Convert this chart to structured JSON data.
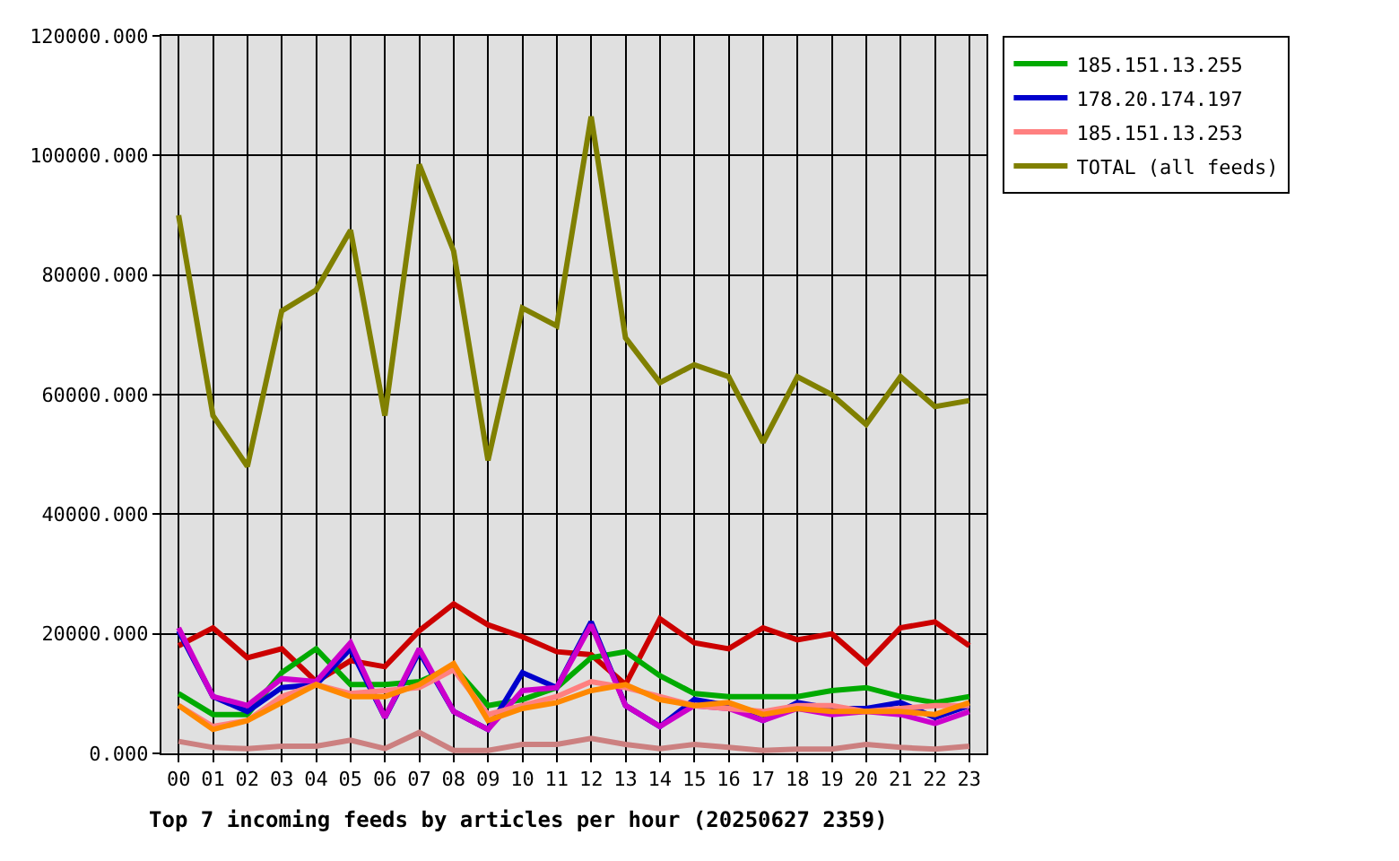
{
  "chart_data": {
    "type": "line",
    "title": "Top 7 incoming feeds by articles per hour (20250627 2359)",
    "categories": [
      "00",
      "01",
      "02",
      "03",
      "04",
      "05",
      "06",
      "07",
      "08",
      "09",
      "10",
      "11",
      "12",
      "13",
      "14",
      "15",
      "16",
      "17",
      "18",
      "19",
      "20",
      "21",
      "22",
      "23"
    ],
    "series": [
      {
        "color": "#cc0000",
        "values": [
          18000,
          21000,
          16000,
          17500,
          12000,
          15500,
          14500,
          20500,
          25000,
          21500,
          19500,
          17000,
          16500,
          11500,
          22500,
          18500,
          17500,
          21000,
          19000,
          20000,
          15000,
          21000,
          22000,
          18000
        ]
      },
      {
        "name": "185.151.13.255",
        "color": "#00aa00",
        "values": [
          10000,
          6500,
          6500,
          13500,
          17500,
          11500,
          11500,
          12000,
          14500,
          8000,
          9000,
          11000,
          16000,
          17000,
          13000,
          10000,
          9500,
          9500,
          9500,
          10500,
          11000,
          9500,
          8500,
          9500
        ]
      },
      {
        "name": "178.20.174.197",
        "color": "#0000cc",
        "values": [
          20500,
          9500,
          7000,
          11000,
          11500,
          17500,
          6000,
          17000,
          7000,
          4000,
          13500,
          11000,
          22000,
          8000,
          4500,
          9000,
          8000,
          5500,
          8500,
          7500,
          7500,
          8500,
          6000,
          8000
        ]
      },
      {
        "color": "#cc00cc",
        "values": [
          21000,
          9500,
          8000,
          12500,
          12000,
          18500,
          6000,
          17500,
          7000,
          4000,
          10500,
          11000,
          21500,
          8000,
          4500,
          8000,
          7500,
          5500,
          7500,
          6500,
          7000,
          6500,
          5000,
          7000
        ]
      },
      {
        "name": "185.151.13.253",
        "color": "#ff8080",
        "values": [
          8000,
          4500,
          5500,
          9500,
          11500,
          10000,
          10500,
          11000,
          14000,
          6500,
          8000,
          9500,
          12000,
          11000,
          9500,
          8000,
          7500,
          7000,
          8000,
          8000,
          7000,
          7500,
          8000,
          8000
        ]
      },
      {
        "color": "#ff8800",
        "values": [
          8000,
          4000,
          5500,
          8500,
          11500,
          9500,
          9500,
          11500,
          15000,
          5500,
          7500,
          8500,
          10500,
          11500,
          9000,
          8000,
          8500,
          6500,
          7500,
          7000,
          7000,
          7000,
          6500,
          8500
        ]
      },
      {
        "color": "#cc8080",
        "values": [
          2000,
          1000,
          800,
          1200,
          1200,
          2200,
          800,
          3500,
          500,
          500,
          1500,
          1500,
          2500,
          1500,
          800,
          1500,
          1000,
          500,
          700,
          700,
          1500,
          1000,
          700,
          1200
        ]
      },
      {
        "name": "TOTAL (all feeds)",
        "color": "#808000",
        "values": [
          90000,
          56500,
          48000,
          74000,
          77500,
          87500,
          56500,
          98500,
          84000,
          49000,
          74500,
          71500,
          106500,
          69500,
          62000,
          65000,
          63000,
          52000,
          63000,
          60000,
          55000,
          63000,
          58000,
          59000
        ]
      }
    ],
    "ylim": [
      0,
      120000
    ],
    "yticks": [
      {
        "value": 0,
        "label": "0.000"
      },
      {
        "value": 20000,
        "label": "20000.000"
      },
      {
        "value": 40000,
        "label": "40000.000"
      },
      {
        "value": 60000,
        "label": "60000.000"
      },
      {
        "value": 80000,
        "label": "80000.000"
      },
      {
        "value": 100000,
        "label": "100000.000"
      },
      {
        "value": 120000,
        "label": "120000.000"
      }
    ],
    "grid": true,
    "legend": "top right",
    "marker": "none",
    "line_style": "solid"
  }
}
